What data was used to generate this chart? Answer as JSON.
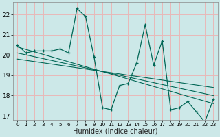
{
  "xlabel": "Humidex (Indice chaleur)",
  "bg_color": "#cce8e8",
  "grid_color": "#e8b8b8",
  "line_color": "#006655",
  "xlim": [
    -0.5,
    23.5
  ],
  "ylim": [
    16.8,
    22.6
  ],
  "yticks": [
    17,
    18,
    19,
    20,
    21,
    22
  ],
  "xticks": [
    0,
    1,
    2,
    3,
    4,
    5,
    6,
    7,
    8,
    9,
    10,
    11,
    12,
    13,
    14,
    15,
    16,
    17,
    18,
    19,
    20,
    21,
    22,
    23
  ],
  "series1_x": [
    0,
    1,
    2,
    3,
    4,
    5,
    6,
    7,
    8,
    9,
    10,
    11,
    12,
    13,
    14,
    15,
    16,
    17,
    18,
    19,
    20,
    21,
    22,
    23
  ],
  "series1_y": [
    20.5,
    20.1,
    20.2,
    20.2,
    20.2,
    20.3,
    20.1,
    22.3,
    21.9,
    19.9,
    17.4,
    17.3,
    18.5,
    18.6,
    19.6,
    21.5,
    19.5,
    20.7,
    17.3,
    17.4,
    17.7,
    17.2,
    16.7,
    17.8
  ],
  "trend2_x": [
    0,
    23
  ],
  "trend2_y": [
    20.4,
    17.6
  ],
  "trend3_x": [
    0,
    23
  ],
  "trend3_y": [
    20.1,
    18.0
  ],
  "trend4_x": [
    0,
    23
  ],
  "trend4_y": [
    19.8,
    18.4
  ],
  "xlabel_fontsize": 7,
  "tick_fontsize": 6
}
